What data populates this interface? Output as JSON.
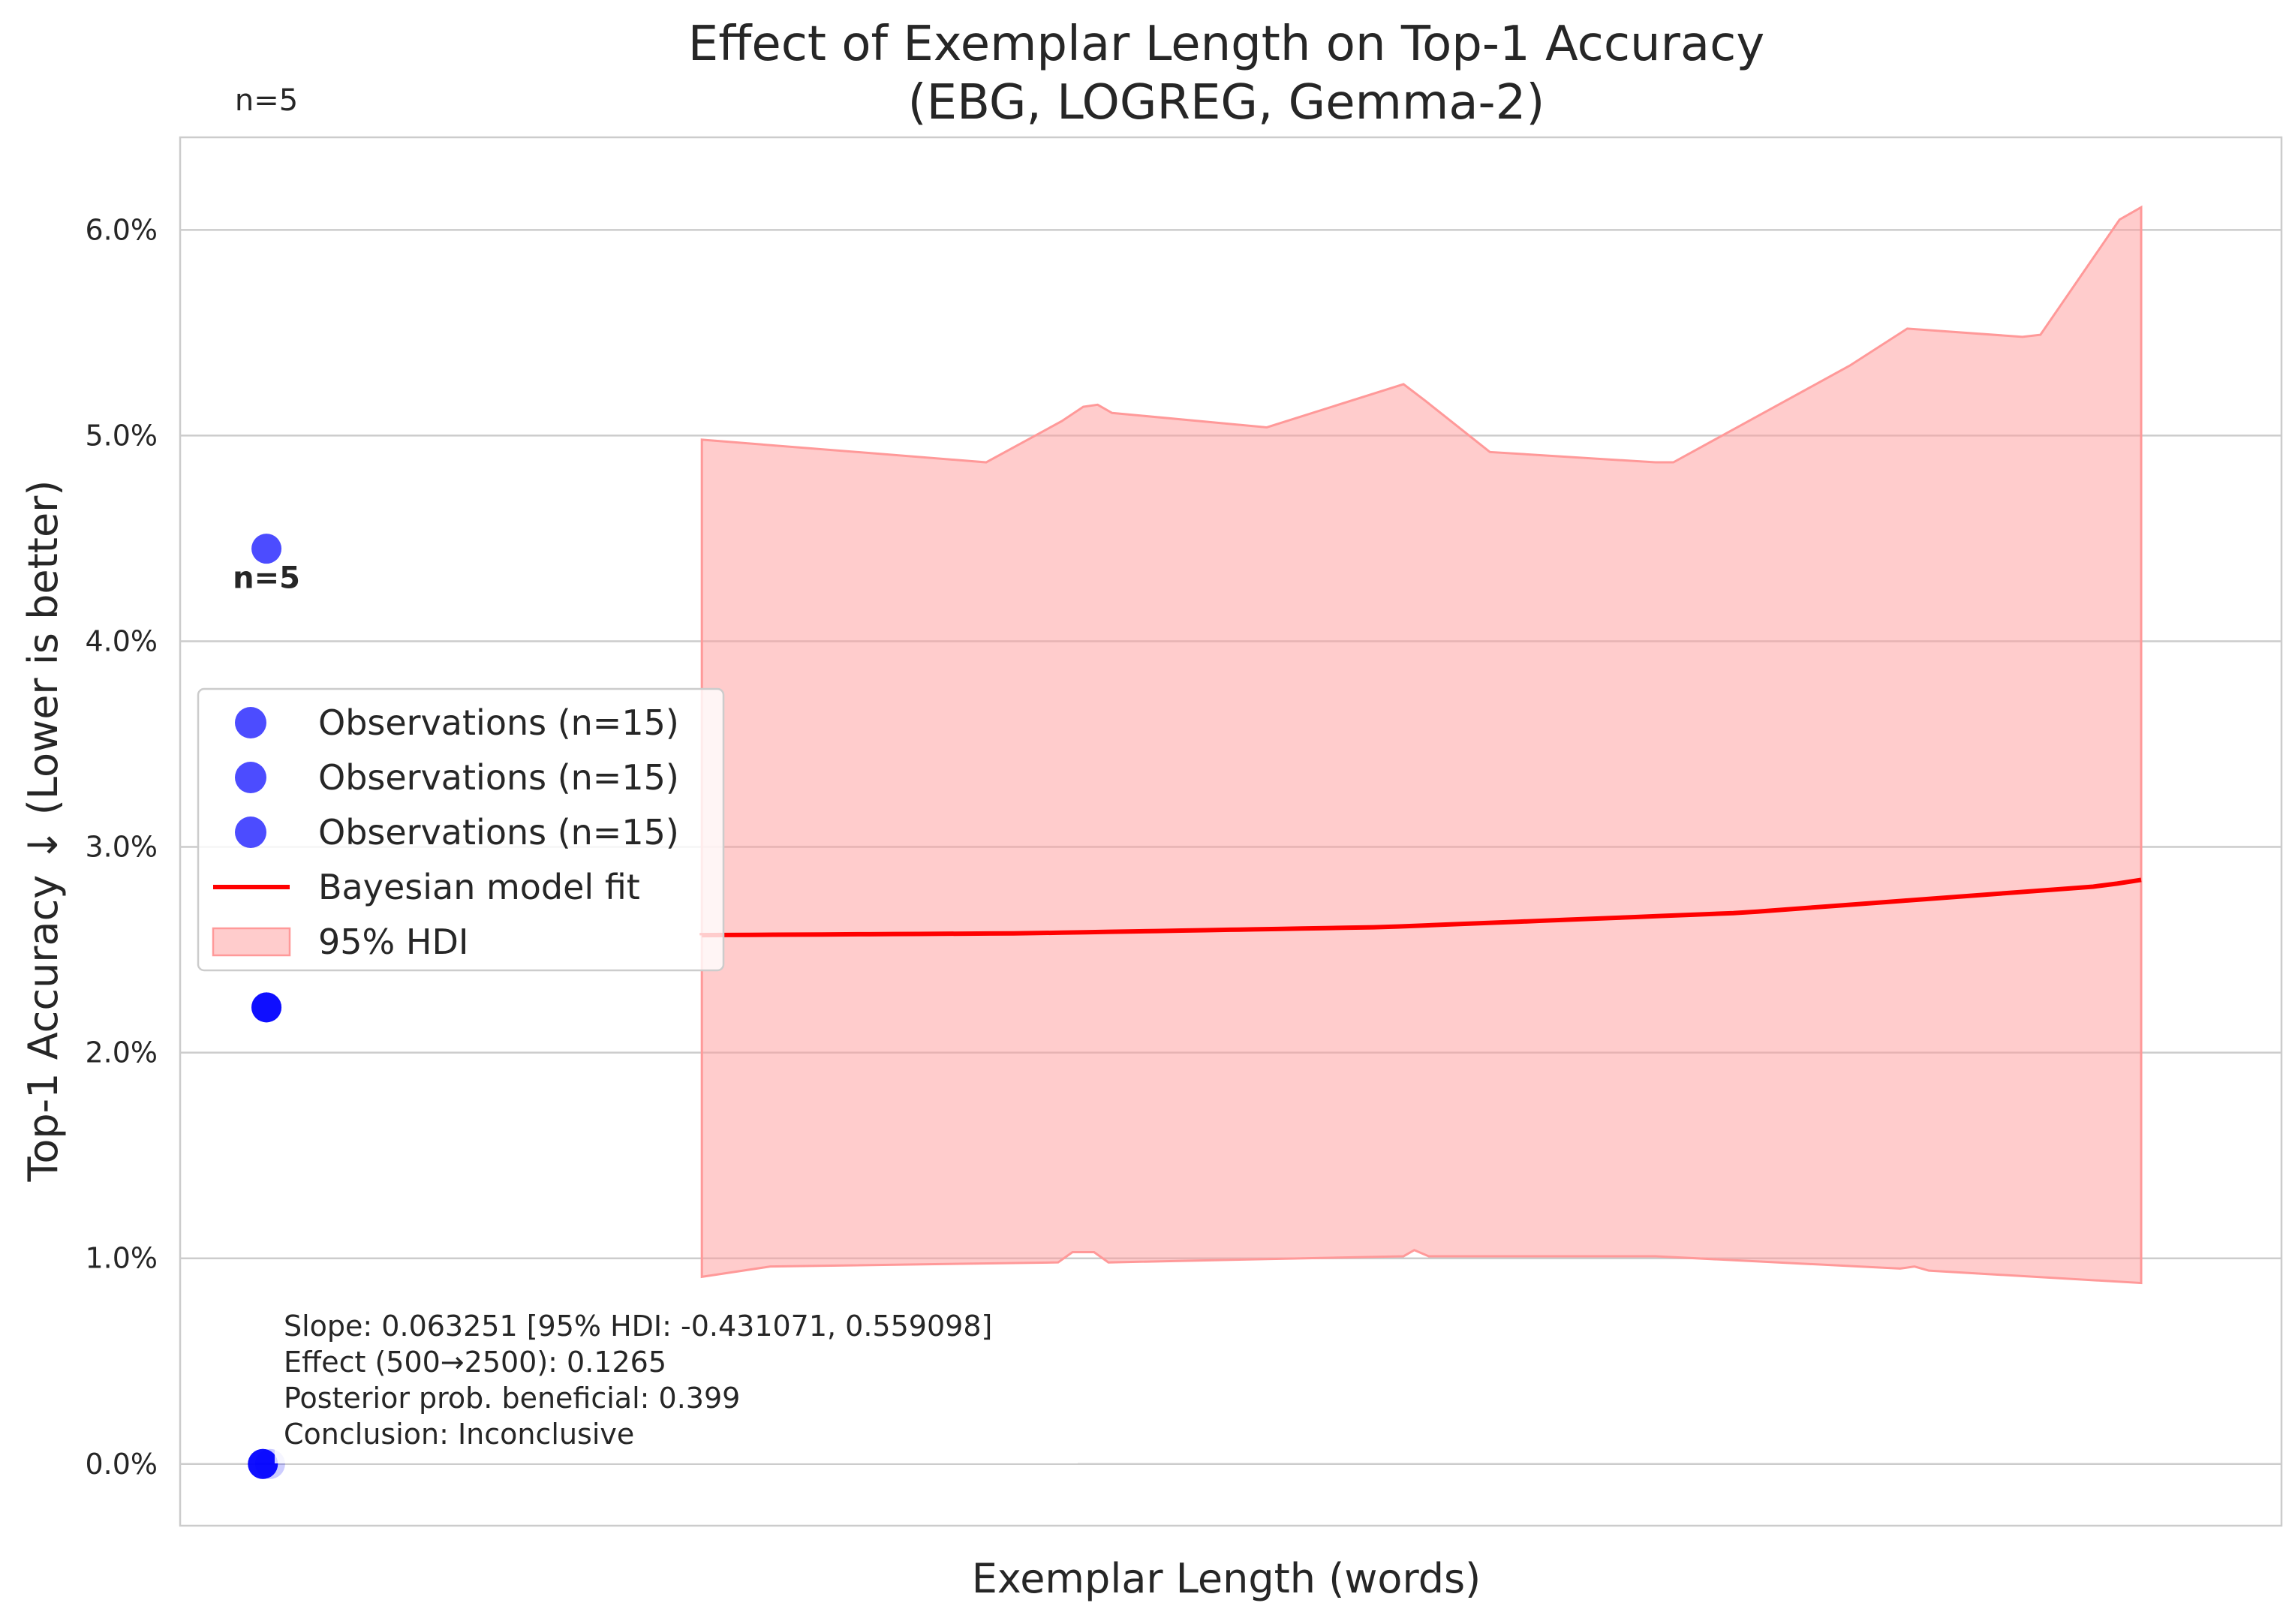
{
  "chart_data": {
    "type": "scatter",
    "title": "Effect of Exemplar Length on Top-1 Accuracy",
    "subtitle": "(EBG, LOGREG, Gemma-2)",
    "xlabel": "Exemplar Length (words)",
    "ylabel": "Top-1 Accuracy ↓ (Lower is better)",
    "ylim": [
      -0.3,
      6.45
    ],
    "xlim": [
      -170,
      2750
    ],
    "yticks": [
      0,
      1,
      2,
      3,
      4,
      5,
      6
    ],
    "ytick_labels": [
      "0.0%",
      "1.0%",
      "2.0%",
      "3.0%",
      "4.0%",
      "5.0%",
      "6.0%"
    ],
    "grid": true,
    "legend_position": "center-left",
    "series": [
      {
        "name": "Observations (n=15)",
        "kind": "scatter",
        "color": "#0000ff",
        "points": [
          {
            "x": -50,
            "y": 4.45
          },
          {
            "x": -50,
            "y": 2.22
          },
          {
            "x": -55,
            "y": 0.0
          },
          {
            "x": -45,
            "y": 0.0
          }
        ]
      },
      {
        "name": "Observations (n=15)",
        "kind": "scatter",
        "color": "#0000ff",
        "points": []
      },
      {
        "name": "Observations (n=15)",
        "kind": "scatter",
        "color": "#0000ff",
        "points": []
      },
      {
        "name": "Bayesian model fit",
        "kind": "line",
        "color": "#ff0000",
        "x": [
          500,
          1000,
          1500,
          2000,
          2500
        ],
        "y": [
          2.57,
          2.58,
          2.61,
          2.68,
          2.81
        ],
        "x_end": 2555,
        "y_end": 2.84
      },
      {
        "name": "95% HDI",
        "kind": "band",
        "color": "#ff9999",
        "upper": [
          {
            "x": 555,
            "y": 4.98
          },
          {
            "x": 950,
            "y": 4.87
          },
          {
            "x": 1055,
            "y": 5.07
          },
          {
            "x": 1085,
            "y": 5.14
          },
          {
            "x": 1105,
            "y": 5.15
          },
          {
            "x": 1125,
            "y": 5.11
          },
          {
            "x": 1340,
            "y": 5.04
          },
          {
            "x": 1530,
            "y": 5.25
          },
          {
            "x": 1560,
            "y": 5.17
          },
          {
            "x": 1650,
            "y": 4.92
          },
          {
            "x": 1880,
            "y": 4.87
          },
          {
            "x": 1905,
            "y": 4.87
          },
          {
            "x": 2150,
            "y": 5.34
          },
          {
            "x": 2230,
            "y": 5.52
          },
          {
            "x": 2390,
            "y": 5.48
          },
          {
            "x": 2415,
            "y": 5.49
          },
          {
            "x": 2525,
            "y": 6.05
          },
          {
            "x": 2555,
            "y": 6.11
          }
        ],
        "lower": [
          {
            "x": 555,
            "y": 0.91
          },
          {
            "x": 650,
            "y": 0.96
          },
          {
            "x": 1050,
            "y": 0.98
          },
          {
            "x": 1070,
            "y": 1.03
          },
          {
            "x": 1100,
            "y": 1.03
          },
          {
            "x": 1120,
            "y": 0.98
          },
          {
            "x": 1530,
            "y": 1.01
          },
          {
            "x": 1545,
            "y": 1.04
          },
          {
            "x": 1565,
            "y": 1.01
          },
          {
            "x": 1880,
            "y": 1.01
          },
          {
            "x": 2220,
            "y": 0.95
          },
          {
            "x": 2240,
            "y": 0.96
          },
          {
            "x": 2260,
            "y": 0.94
          },
          {
            "x": 2555,
            "y": 0.88
          }
        ]
      }
    ],
    "point_labels": [
      {
        "text": "n=5",
        "x": -50,
        "y": 6.6
      },
      {
        "text": "n=5",
        "x": -50,
        "y": 4.31
      }
    ],
    "annotation": {
      "lines": [
        "Slope: 0.063251 [95% HDI: -0.431071, 0.559098]",
        "Effect (500→2500): 0.1265",
        "Posterior prob. beneficial: 0.399",
        "Conclusion: Inconclusive"
      ]
    }
  }
}
